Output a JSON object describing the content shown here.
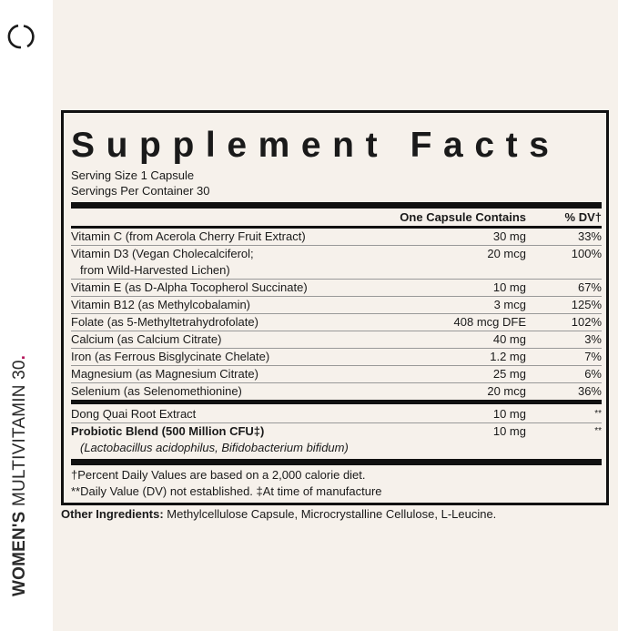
{
  "brand": {
    "product_name_bold": "WOMEN'S",
    "product_name_rest": " MULTIVITAMIN 30",
    "dot": ".",
    "logo_icon": "open-circle-logo",
    "accent_color": "#b5175b"
  },
  "label": {
    "title": "Supplement Facts",
    "serving_size": "Serving Size 1 Capsule",
    "servings_per_container": "Servings Per Container 30",
    "header": {
      "amount": "One Capsule Contains",
      "dv": "% DV†"
    },
    "group1": [
      {
        "name": "Vitamin C (from Acerola Cherry Fruit Extract)",
        "amount": "30 mg",
        "dv": "33%"
      },
      {
        "name": "Vitamin D3 (Vegan Cholecalciferol;",
        "name_line2": "from Wild-Harvested Lichen)",
        "amount": "20 mcg",
        "dv": "100%"
      },
      {
        "name": "Vitamin E (as D-Alpha Tocopherol Succinate)",
        "amount": "10 mg",
        "dv": "67%"
      },
      {
        "name": "Vitamin B12 (as Methylcobalamin)",
        "amount": "3 mcg",
        "dv": "125%"
      },
      {
        "name": "Folate (as 5-Methyltetrahydrofolate)",
        "amount": "408 mcg DFE",
        "dv": "102%"
      },
      {
        "name": "Calcium (as Calcium Citrate)",
        "amount": "40 mg",
        "dv": "3%"
      },
      {
        "name": "Iron (as Ferrous Bisglycinate Chelate)",
        "amount": "1.2 mg",
        "dv": "7%"
      },
      {
        "name": "Magnesium (as Magnesium Citrate)",
        "amount": "25 mg",
        "dv": "6%"
      },
      {
        "name": "Selenium (as Selenomethionine)",
        "amount": "20 mcg",
        "dv": "36%"
      }
    ],
    "group2": [
      {
        "name": "Dong Quai Root Extract",
        "amount": "10 mg",
        "dv": "**"
      },
      {
        "name": "Probiotic Blend (500 Million CFU‡)",
        "name_line2": "(Lactobacillus acidophilus, Bifidobacterium bifidum)",
        "amount": "10 mg",
        "dv": "**"
      }
    ],
    "footnote1": "†Percent Daily Values are based on a 2,000 calorie diet.",
    "footnote2": "**Daily Value (DV) not established.  ‡At time of manufacture"
  },
  "other_ingredients": {
    "label": "Other Ingredients:",
    "text": " Methylcellulose Capsule, Microcrystalline Cellulose, L-Leucine."
  }
}
